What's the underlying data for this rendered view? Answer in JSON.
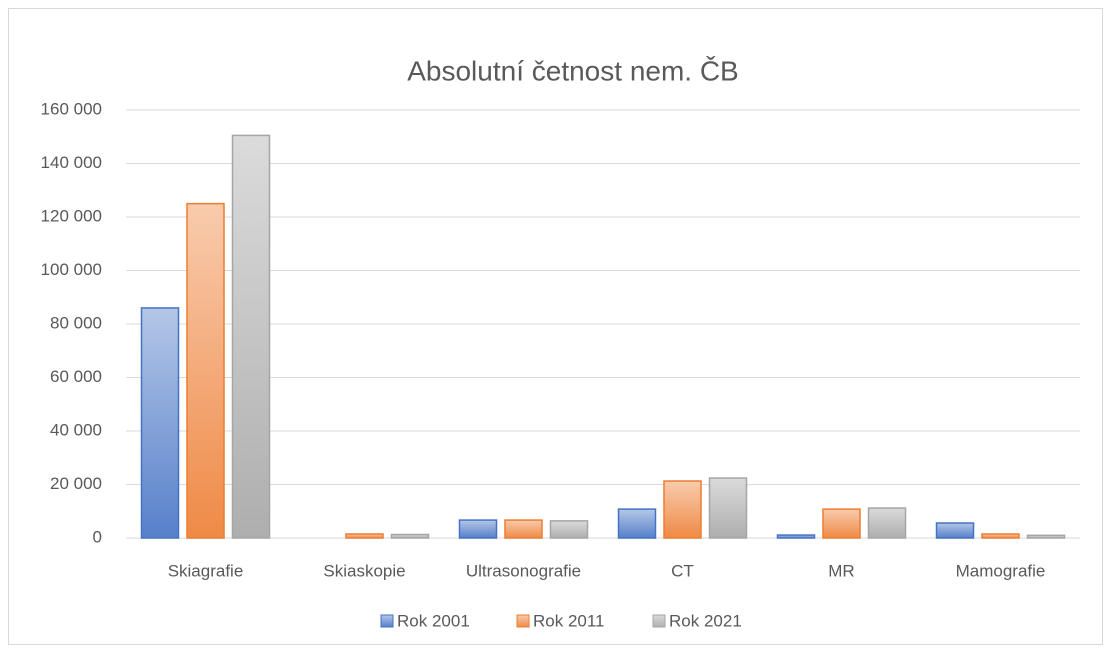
{
  "chart_data": {
    "type": "bar",
    "title": "Absolutní četnost nem. ČB",
    "categories": [
      "Skiagrafie",
      "Skiaskopie",
      "Ultrasonografie",
      "CT",
      "MR",
      "Mamografie"
    ],
    "series": [
      {
        "name": "Rok 2001",
        "color": "#4472c4",
        "values": [
          86000,
          0,
          6700,
          10800,
          1100,
          5600
        ]
      },
      {
        "name": "Rok 2011",
        "color": "#ed7d31",
        "values": [
          125000,
          1500,
          6700,
          21300,
          10800,
          1500
        ]
      },
      {
        "name": "Rok 2021",
        "color": "#a5a5a5",
        "values": [
          150500,
          1300,
          6400,
          22400,
          11200,
          1000
        ]
      }
    ],
    "ylim": [
      0,
      160000
    ],
    "yticks": [
      {
        "value": 0,
        "label": "0"
      },
      {
        "value": 20000,
        "label": "20 000"
      },
      {
        "value": 40000,
        "label": "40 000"
      },
      {
        "value": 60000,
        "label": "60 000"
      },
      {
        "value": 80000,
        "label": "80 000"
      },
      {
        "value": 100000,
        "label": "100 000"
      },
      {
        "value": 120000,
        "label": "120 000"
      },
      {
        "value": 140000,
        "label": "140 000"
      },
      {
        "value": 160000,
        "label": "160 000"
      }
    ],
    "grid": true,
    "legend": "bottom"
  }
}
